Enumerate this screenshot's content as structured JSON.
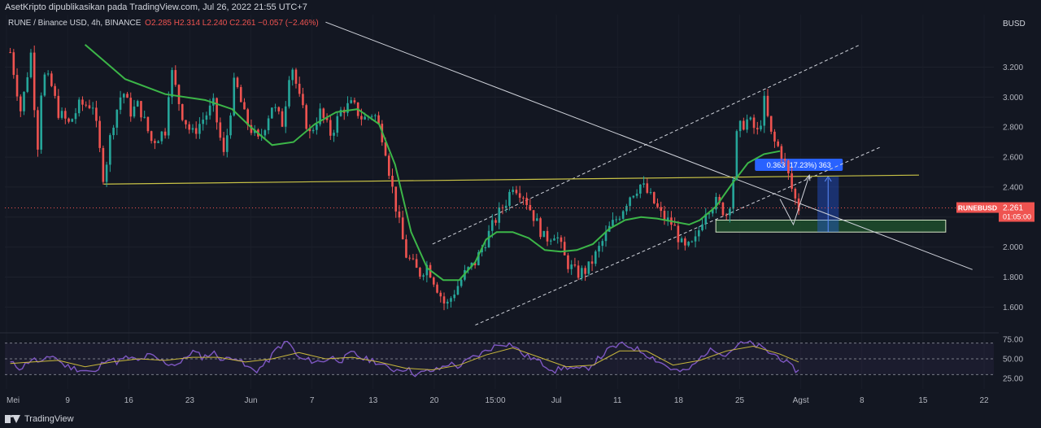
{
  "header": {
    "published": "AsetKripto dipublikasikan pada TradingView.com, Jul 26, 2022 21:55 UTC+7"
  },
  "legend": {
    "symbol": "RUNE / Binance USD, 4h, BINANCE",
    "ohlc": "O2.285 H2.314 L2.240 C2.261 −0.057 (−2.46%)"
  },
  "footer": {
    "brand": "TradingView"
  },
  "colors": {
    "background": "#131722",
    "up": "#26a69a",
    "down": "#ef5350",
    "ma": "#3cb648",
    "support_line": "#c9c346",
    "rsi": "#7e57c2",
    "rsi_ma": "#c9b83c",
    "zone_fill": "#1e4d2b",
    "measure": "#2962ff"
  },
  "chart_data": [
    {
      "type": "candlestick",
      "currency_label": "BUSD",
      "ylim": [
        1.45,
        3.55
      ],
      "y_ticks": [
        1.6,
        1.8,
        2.0,
        2.2,
        2.4,
        2.6,
        2.8,
        3.0,
        3.2
      ],
      "y_tick_labels": [
        "1.600",
        "1.800",
        "2.000",
        "2.200",
        "2.400",
        "2.600",
        "2.800",
        "3.000",
        "3.200"
      ],
      "x_ticks": [
        "Mei",
        "9",
        "16",
        "23",
        "Jun",
        "7",
        "13",
        "20",
        "15:00",
        "Jul",
        "11",
        "18",
        "25",
        "Agst",
        "8",
        "15",
        "22"
      ],
      "price_tag": {
        "symbol": "RUNEBUSD",
        "price": "2.261",
        "countdown": "01:05:00",
        "value": 2.261
      },
      "measure_label": "0.363 (17.23%) 363",
      "price_path": [
        [
          0.02,
          3.3
        ],
        [
          0.06,
          2.9
        ],
        [
          0.1,
          3.32
        ],
        [
          0.12,
          2.6
        ],
        [
          0.14,
          3.15
        ],
        [
          0.17,
          3.1
        ],
        [
          0.2,
          2.9
        ],
        [
          0.24,
          2.82
        ],
        [
          0.28,
          2.95
        ],
        [
          0.33,
          2.95
        ],
        [
          0.37,
          2.45
        ],
        [
          0.4,
          2.8
        ],
        [
          0.44,
          3.05
        ],
        [
          0.47,
          2.9
        ],
        [
          0.5,
          2.95
        ],
        [
          0.55,
          2.7
        ],
        [
          0.6,
          2.78
        ],
        [
          0.62,
          3.2
        ],
        [
          0.66,
          2.9
        ],
        [
          0.7,
          2.75
        ],
        [
          0.74,
          2.85
        ],
        [
          0.78,
          2.95
        ],
        [
          0.82,
          2.6
        ],
        [
          0.86,
          3.12
        ],
        [
          0.9,
          2.85
        ],
        [
          0.95,
          2.7
        ],
        [
          1.0,
          2.95
        ],
        [
          1.04,
          2.82
        ],
        [
          1.07,
          3.25
        ],
        [
          1.1,
          3.0
        ],
        [
          1.14,
          2.75
        ],
        [
          1.18,
          2.9
        ],
        [
          1.22,
          2.75
        ],
        [
          1.26,
          2.92
        ],
        [
          1.3,
          2.95
        ],
        [
          1.34,
          2.85
        ],
        [
          1.38,
          2.9
        ],
        [
          1.42,
          2.7
        ],
        [
          1.44,
          2.48
        ],
        [
          1.47,
          2.2
        ],
        [
          1.5,
          1.95
        ],
        [
          1.55,
          1.82
        ],
        [
          1.58,
          1.88
        ],
        [
          1.62,
          1.72
        ],
        [
          1.65,
          1.6
        ],
        [
          1.68,
          1.7
        ],
        [
          1.72,
          1.82
        ],
        [
          1.76,
          1.9
        ],
        [
          1.8,
          2.05
        ],
        [
          1.84,
          2.2
        ],
        [
          1.88,
          2.32
        ],
        [
          1.9,
          2.42
        ],
        [
          1.94,
          2.35
        ],
        [
          1.98,
          2.2
        ],
        [
          2.02,
          2.05
        ],
        [
          2.06,
          2.1
        ],
        [
          2.1,
          1.9
        ],
        [
          2.14,
          1.82
        ],
        [
          2.18,
          1.85
        ],
        [
          2.22,
          1.98
        ],
        [
          2.26,
          2.12
        ],
        [
          2.3,
          2.22
        ],
        [
          2.34,
          2.35
        ],
        [
          2.38,
          2.42
        ],
        [
          2.42,
          2.32
        ],
        [
          2.46,
          2.2
        ],
        [
          2.5,
          2.15
        ],
        [
          2.54,
          1.98
        ],
        [
          2.58,
          2.02
        ],
        [
          2.62,
          2.25
        ],
        [
          2.66,
          2.3
        ],
        [
          2.7,
          2.22
        ],
        [
          2.72,
          2.35
        ],
        [
          2.74,
          2.78
        ],
        [
          2.78,
          2.85
        ],
        [
          2.82,
          2.75
        ],
        [
          2.84,
          2.98
        ],
        [
          2.87,
          2.72
        ],
        [
          2.9,
          2.65
        ],
        [
          2.92,
          2.55
        ],
        [
          2.95,
          2.35
        ],
        [
          2.97,
          2.26
        ]
      ],
      "ma_path": [
        [
          0.3,
          3.35
        ],
        [
          0.45,
          3.12
        ],
        [
          0.6,
          3.02
        ],
        [
          0.75,
          2.98
        ],
        [
          0.85,
          2.92
        ],
        [
          0.92,
          2.8
        ],
        [
          1.0,
          2.68
        ],
        [
          1.08,
          2.7
        ],
        [
          1.16,
          2.82
        ],
        [
          1.24,
          2.9
        ],
        [
          1.32,
          2.92
        ],
        [
          1.4,
          2.82
        ],
        [
          1.46,
          2.55
        ],
        [
          1.52,
          2.1
        ],
        [
          1.58,
          1.86
        ],
        [
          1.64,
          1.78
        ],
        [
          1.7,
          1.78
        ],
        [
          1.76,
          1.9
        ],
        [
          1.8,
          2.05
        ],
        [
          1.84,
          2.1
        ],
        [
          1.9,
          2.1
        ],
        [
          1.96,
          2.06
        ],
        [
          2.02,
          1.98
        ],
        [
          2.08,
          1.97
        ],
        [
          2.14,
          1.98
        ],
        [
          2.2,
          2.02
        ],
        [
          2.26,
          2.12
        ],
        [
          2.32,
          2.18
        ],
        [
          2.38,
          2.2
        ],
        [
          2.44,
          2.19
        ],
        [
          2.5,
          2.17
        ],
        [
          2.56,
          2.15
        ],
        [
          2.6,
          2.18
        ],
        [
          2.66,
          2.27
        ],
        [
          2.72,
          2.42
        ],
        [
          2.78,
          2.56
        ],
        [
          2.84,
          2.62
        ],
        [
          2.9,
          2.64
        ]
      ],
      "downtrend_line": [
        [
          1.2,
          3.5
        ],
        [
          3.62,
          1.85
        ]
      ],
      "channel_lower": [
        [
          1.76,
          1.48
        ],
        [
          3.28,
          2.67
        ]
      ],
      "channel_upper": [
        [
          1.6,
          2.02
        ],
        [
          3.2,
          3.35
        ]
      ],
      "support_line": [
        [
          0.37,
          2.42
        ],
        [
          3.42,
          2.48
        ]
      ],
      "demand_zone": {
        "x": [
          2.66,
          3.52
        ],
        "y": [
          2.1,
          2.18
        ]
      },
      "measure_box": {
        "x": [
          3.04,
          3.12
        ],
        "y": [
          2.1,
          2.47
        ]
      },
      "projection_path": [
        [
          2.9,
          2.32
        ],
        [
          2.95,
          2.15
        ],
        [
          3.01,
          2.48
        ]
      ]
    },
    {
      "type": "line",
      "name": "RSI",
      "ylim": [
        20,
        80
      ],
      "y_ticks": [
        25,
        50,
        75
      ],
      "y_tick_labels": [
        "25.00",
        "50.00",
        "75.00"
      ],
      "levels": [
        30,
        50,
        70
      ],
      "rsi_path": [
        [
          0.02,
          45
        ],
        [
          0.06,
          38
        ],
        [
          0.1,
          50
        ],
        [
          0.14,
          45
        ],
        [
          0.18,
          55
        ],
        [
          0.22,
          42
        ],
        [
          0.26,
          38
        ],
        [
          0.3,
          35
        ],
        [
          0.34,
          32
        ],
        [
          0.38,
          52
        ],
        [
          0.42,
          46
        ],
        [
          0.46,
          52
        ],
        [
          0.5,
          47
        ],
        [
          0.54,
          55
        ],
        [
          0.58,
          48
        ],
        [
          0.62,
          43
        ],
        [
          0.66,
          45
        ],
        [
          0.7,
          60
        ],
        [
          0.74,
          52
        ],
        [
          0.78,
          58
        ],
        [
          0.82,
          48
        ],
        [
          0.86,
          54
        ],
        [
          0.9,
          40
        ],
        [
          0.94,
          35
        ],
        [
          0.98,
          45
        ],
        [
          1.02,
          64
        ],
        [
          1.06,
          72
        ],
        [
          1.1,
          50
        ],
        [
          1.14,
          48
        ],
        [
          1.18,
          46
        ],
        [
          1.22,
          52
        ],
        [
          1.26,
          48
        ],
        [
          1.3,
          58
        ],
        [
          1.34,
          50
        ],
        [
          1.38,
          48
        ],
        [
          1.42,
          40
        ],
        [
          1.46,
          36
        ],
        [
          1.5,
          38
        ],
        [
          1.54,
          30
        ],
        [
          1.58,
          34
        ],
        [
          1.62,
          36
        ],
        [
          1.66,
          44
        ],
        [
          1.7,
          40
        ],
        [
          1.74,
          50
        ],
        [
          1.78,
          56
        ],
        [
          1.82,
          64
        ],
        [
          1.86,
          70
        ],
        [
          1.9,
          68
        ],
        [
          1.94,
          55
        ],
        [
          1.98,
          50
        ],
        [
          2.02,
          42
        ],
        [
          2.06,
          35
        ],
        [
          2.1,
          40
        ],
        [
          2.14,
          36
        ],
        [
          2.18,
          38
        ],
        [
          2.22,
          50
        ],
        [
          2.26,
          62
        ],
        [
          2.3,
          68
        ],
        [
          2.34,
          66
        ],
        [
          2.38,
          60
        ],
        [
          2.42,
          52
        ],
        [
          2.46,
          44
        ],
        [
          2.5,
          36
        ],
        [
          2.54,
          33
        ],
        [
          2.58,
          42
        ],
        [
          2.62,
          58
        ],
        [
          2.66,
          62
        ],
        [
          2.7,
          55
        ],
        [
          2.74,
          68
        ],
        [
          2.78,
          70
        ],
        [
          2.82,
          66
        ],
        [
          2.86,
          58
        ],
        [
          2.9,
          52
        ],
        [
          2.94,
          40
        ],
        [
          2.97,
          34
        ]
      ],
      "rsi_ma_path": [
        [
          0.02,
          44
        ],
        [
          0.1,
          46
        ],
        [
          0.2,
          48
        ],
        [
          0.3,
          40
        ],
        [
          0.4,
          46
        ],
        [
          0.5,
          50
        ],
        [
          0.6,
          48
        ],
        [
          0.7,
          52
        ],
        [
          0.8,
          52
        ],
        [
          0.9,
          46
        ],
        [
          1.0,
          50
        ],
        [
          1.1,
          58
        ],
        [
          1.2,
          50
        ],
        [
          1.3,
          52
        ],
        [
          1.4,
          46
        ],
        [
          1.5,
          38
        ],
        [
          1.6,
          36
        ],
        [
          1.7,
          42
        ],
        [
          1.8,
          55
        ],
        [
          1.9,
          64
        ],
        [
          2.0,
          52
        ],
        [
          2.1,
          40
        ],
        [
          2.2,
          42
        ],
        [
          2.3,
          60
        ],
        [
          2.4,
          60
        ],
        [
          2.5,
          42
        ],
        [
          2.6,
          48
        ],
        [
          2.7,
          60
        ],
        [
          2.8,
          66
        ],
        [
          2.9,
          56
        ],
        [
          2.97,
          46
        ]
      ]
    }
  ]
}
